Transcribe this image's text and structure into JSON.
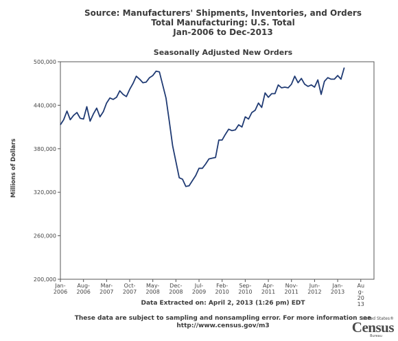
{
  "header": {
    "title_lines": [
      "Source: Manufacturers' Shipments, Inventories, and Orders",
      "Total Manufacturing: U.S. Total",
      "Jan-2006 to Dec-2013"
    ]
  },
  "chart_data": {
    "type": "line",
    "title": "Seasonally Adjusted New Orders",
    "xlabel": "",
    "ylabel": "Millions of Dollars",
    "ylim": [
      200000,
      500000
    ],
    "yticks": [
      "200,000",
      "260,000",
      "320,000",
      "380,000",
      "440,000",
      "500,000"
    ],
    "xticks": [
      [
        "Jan-",
        "2006"
      ],
      [
        "Aug-",
        "2006"
      ],
      [
        "Mar-",
        "2007"
      ],
      [
        "Oct-",
        "2007"
      ],
      [
        "May-",
        "2008"
      ],
      [
        "Dec-",
        "2008"
      ],
      [
        "Jul-",
        "2009"
      ],
      [
        "Feb-",
        "2010"
      ],
      [
        "Sep-",
        "2010"
      ],
      [
        "Apr-",
        "2011"
      ],
      [
        "Nov-",
        "2011"
      ],
      [
        "Jun-",
        "2012"
      ],
      [
        "Jan-",
        "2013"
      ],
      [
        "Au",
        "g-",
        "20",
        "13"
      ]
    ],
    "grid": false,
    "x_start": "2006-01",
    "x_end": "2013-12",
    "series": [
      {
        "color": "#1f3a73",
        "values": [
          413000,
          420000,
          432000,
          420000,
          426000,
          430000,
          422000,
          421000,
          438000,
          418000,
          428000,
          436000,
          424000,
          431000,
          443000,
          450000,
          448000,
          451000,
          460000,
          455000,
          452000,
          462000,
          470000,
          480000,
          476000,
          471000,
          472000,
          478000,
          481000,
          487000,
          486000,
          468000,
          450000,
          418000,
          384000,
          362000,
          340000,
          338000,
          328000,
          329000,
          336000,
          343000,
          353000,
          353000,
          359000,
          366000,
          367000,
          368000,
          392000,
          392000,
          400000,
          407000,
          405000,
          406000,
          413000,
          410000,
          424000,
          421000,
          430000,
          433000,
          443000,
          437000,
          457000,
          451000,
          456000,
          456000,
          468000,
          464000,
          465000,
          464000,
          469000,
          480000,
          471000,
          477000,
          469000,
          466000,
          468000,
          465000,
          475000,
          455000,
          473000,
          478000,
          476000,
          476000,
          481000,
          476000,
          492000
        ]
      }
    ]
  },
  "footer": {
    "extracted": "Data Extracted on: April 2, 2013 (1:26 pm) EDT",
    "note_line1": "These data are subject to sampling and nonsampling error. For more information see",
    "note_line2": "http://www.census.gov/m3"
  },
  "logo": {
    "top": "United States®",
    "main": "Census",
    "sub": "Bureau"
  }
}
